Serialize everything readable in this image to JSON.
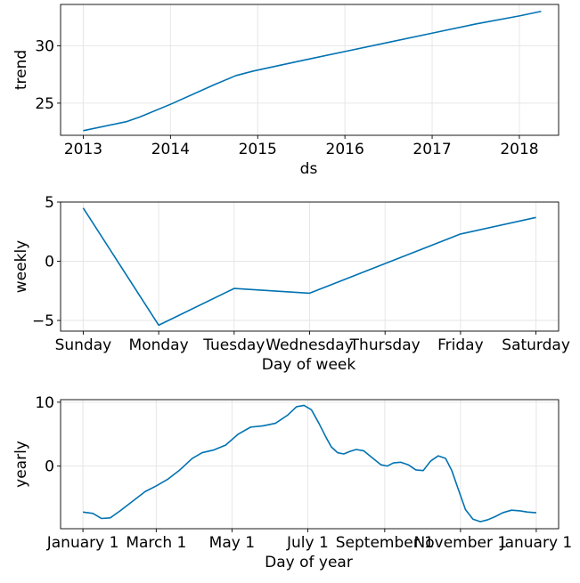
{
  "chart_data": [
    {
      "type": "line",
      "title": "",
      "xlabel": "ds",
      "ylabel": "trend",
      "grid": true,
      "series_color": "#0072B2",
      "xlim": [
        2012.74,
        2018.45
      ],
      "ylim": [
        22.2,
        33.6
      ],
      "xticks": [
        2013,
        2014,
        2015,
        2016,
        2017,
        2018
      ],
      "xtick_labels": [
        "2013",
        "2014",
        "2015",
        "2016",
        "2017",
        "2018"
      ],
      "yticks": [
        25,
        30
      ],
      "ytick_labels": [
        "25",
        "30"
      ],
      "x": [
        2013.0,
        2013.5,
        2013.65,
        2014.0,
        2014.5,
        2014.75,
        2014.95,
        2015.5,
        2016.0,
        2016.5,
        2017.0,
        2017.5,
        2018.0,
        2018.25
      ],
      "values": [
        22.6,
        23.4,
        23.8,
        24.9,
        26.6,
        27.4,
        27.8,
        28.7,
        29.5,
        30.3,
        31.1,
        31.9,
        32.6,
        33.0
      ]
    },
    {
      "type": "line",
      "title": "",
      "xlabel": "Day of week",
      "ylabel": "weekly",
      "grid": true,
      "series_color": "#0072B2",
      "xlim": [
        -0.3,
        6.3
      ],
      "ylim": [
        -5.9,
        5.0
      ],
      "categories": [
        "Sunday",
        "Monday",
        "Tuesday",
        "Wednesday",
        "Thursday",
        "Friday",
        "Saturday"
      ],
      "yticks": [
        -5,
        0,
        5
      ],
      "ytick_labels": [
        "−5",
        "0",
        "5"
      ],
      "values": [
        4.5,
        -5.4,
        -2.3,
        -2.7,
        -0.2,
        2.3,
        3.7
      ]
    },
    {
      "type": "line",
      "title": "",
      "xlabel": "Day of year",
      "ylabel": "yearly",
      "grid": true,
      "series_color": "#0072B2",
      "xlim": [
        -18,
        383
      ],
      "ylim": [
        -9.8,
        10.4
      ],
      "xticks": [
        0,
        59,
        120,
        181,
        243,
        304,
        365
      ],
      "xtick_labels": [
        "January 1",
        "March 1",
        "May 1",
        "July 1",
        "September 1",
        "November 1",
        "January 1"
      ],
      "yticks": [
        0,
        10
      ],
      "ytick_labels": [
        "0",
        "10"
      ],
      "x": [
        0,
        8,
        15,
        22,
        30,
        40,
        50,
        59,
        68,
        78,
        88,
        96,
        105,
        115,
        125,
        135,
        145,
        155,
        165,
        172,
        178,
        184,
        190,
        196,
        200,
        205,
        210,
        215,
        220,
        226,
        233,
        240,
        245,
        250,
        256,
        262,
        268,
        274,
        280,
        286,
        292,
        297,
        302,
        308,
        314,
        320,
        326,
        332,
        338,
        345,
        352,
        358,
        365
      ],
      "values": [
        -7.2,
        -7.4,
        -8.2,
        -8.1,
        -7.0,
        -5.5,
        -4.0,
        -3.1,
        -2.1,
        -0.6,
        1.2,
        2.1,
        2.5,
        3.3,
        5.0,
        6.1,
        6.3,
        6.7,
        8.0,
        9.3,
        9.5,
        8.8,
        6.7,
        4.4,
        3.0,
        2.1,
        1.9,
        2.3,
        2.6,
        2.4,
        1.3,
        0.2,
        0.0,
        0.5,
        0.6,
        0.2,
        -0.6,
        -0.7,
        0.8,
        1.6,
        1.2,
        -0.7,
        -3.5,
        -6.8,
        -8.3,
        -8.7,
        -8.4,
        -7.9,
        -7.3,
        -6.9,
        -7.0,
        -7.2,
        -7.3
      ]
    }
  ]
}
